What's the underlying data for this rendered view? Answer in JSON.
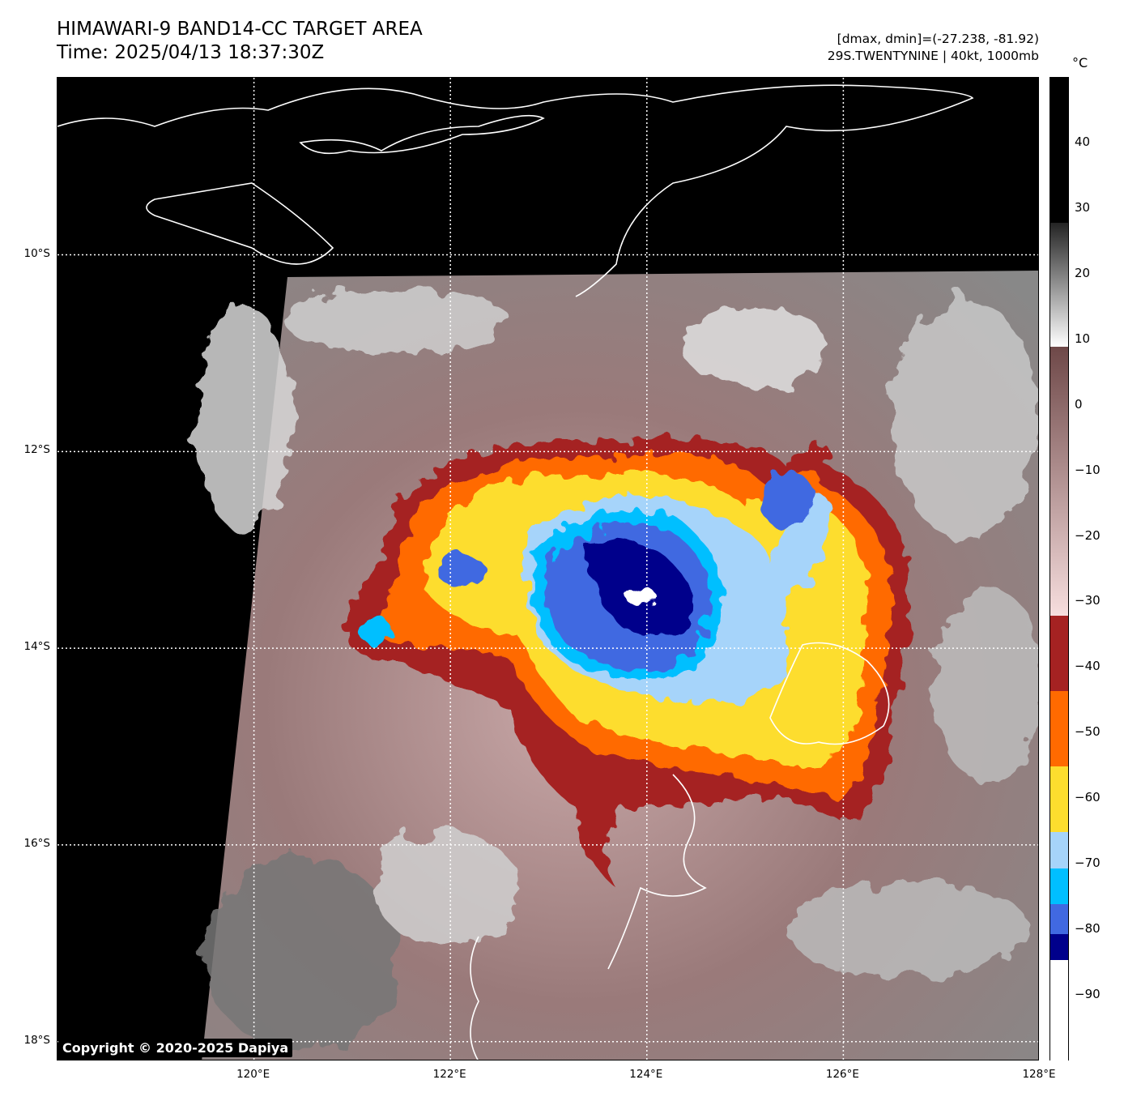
{
  "header": {
    "title": "HIMAWARI-9 BAND14-CC TARGET AREA",
    "time": "Time: 2025/04/13 18:37:30Z",
    "range_text": "[dmax, dmin]=(-27.238, -81.92)",
    "storm_text": "29S.TWENTYNINE | 40kt, 1000mb"
  },
  "map": {
    "lat_labels": [
      "10°S",
      "12°S",
      "14°S",
      "16°S",
      "18°S"
    ],
    "lat_values": [
      -10,
      -12,
      -14,
      -16,
      -18
    ],
    "lon_labels": [
      "120°E",
      "122°E",
      "124°E",
      "126°E",
      "128°E"
    ],
    "lon_values": [
      120,
      122,
      124,
      126,
      128
    ],
    "extent": {
      "lon_min": 118,
      "lon_max": 128,
      "lat_min": -18.2,
      "lat_max": -8.2
    },
    "copyright": "Copyright © 2020-2025 Dapiya"
  },
  "colorbar": {
    "unit": "°C",
    "min": -100,
    "max": 50,
    "tick_labels": [
      "40",
      "30",
      "20",
      "10",
      "0",
      "−10",
      "−20",
      "−30",
      "−40",
      "−50",
      "−60",
      "−70",
      "−80",
      "−90"
    ],
    "tick_values": [
      40,
      30,
      20,
      10,
      0,
      -10,
      -20,
      -30,
      -40,
      -50,
      -60,
      -70,
      -80,
      -90
    ],
    "segments": [
      {
        "from": -100,
        "to": -84.5,
        "color": "#ffffff"
      },
      {
        "from": -84.5,
        "to": -80.5,
        "color": "#00008b"
      },
      {
        "from": -80.5,
        "to": -76,
        "color": "#4169e1"
      },
      {
        "from": -76,
        "to": -70.5,
        "color": "#00bfff"
      },
      {
        "from": -70.5,
        "to": -65,
        "color": "#a6d4fa"
      },
      {
        "from": -65,
        "to": -55,
        "color": "#fddd2e"
      },
      {
        "from": -55,
        "to": -43.5,
        "color": "#ff6a00"
      },
      {
        "from": -43.5,
        "to": -32,
        "color": "#a52222"
      },
      {
        "from": -32,
        "to": 9,
        "gradient": [
          "#f7dede",
          "#6e4848"
        ]
      },
      {
        "from": 9,
        "to": 28,
        "gradient": [
          "#ffffff",
          "#222222"
        ]
      },
      {
        "from": 28,
        "to": 50,
        "color": "#000000"
      }
    ]
  }
}
